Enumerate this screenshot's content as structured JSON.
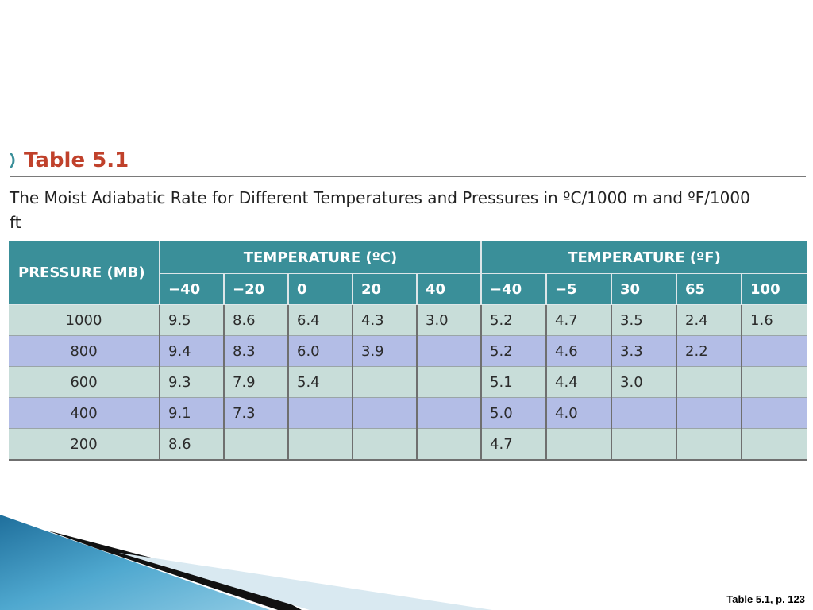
{
  "heading": {
    "label": "Table 5.1",
    "accent_color": "#c0412b",
    "chevron_color": "#3a8f99",
    "icon": "chevron-right-icon"
  },
  "caption": "The Moist Adiabatic Rate for Different Temperatures and Pressures in ºC/1000 m and ºF/1000 ft",
  "table": {
    "header_color": "#3a8f99",
    "row_colors": [
      "#c8ddd9",
      "#b3bde6"
    ],
    "pressure_header": "PRESSURE (MB)",
    "celsius_header": "TEMPERATURE (ºC)",
    "fahrenheit_header": "TEMPERATURE (ºF)",
    "celsius_temps": [
      "−40",
      "−20",
      "0",
      "20",
      "40"
    ],
    "fahrenheit_temps": [
      "−40",
      "−5",
      "30",
      "65",
      "100"
    ],
    "rows": [
      {
        "pressure": "1000",
        "c": [
          "9.5",
          "8.6",
          "6.4",
          "4.3",
          "3.0"
        ],
        "f": [
          "5.2",
          "4.7",
          "3.5",
          "2.4",
          "1.6"
        ]
      },
      {
        "pressure": "800",
        "c": [
          "9.4",
          "8.3",
          "6.0",
          "3.9",
          ""
        ],
        "f": [
          "5.2",
          "4.6",
          "3.3",
          "2.2",
          ""
        ]
      },
      {
        "pressure": "600",
        "c": [
          "9.3",
          "7.9",
          "5.4",
          "",
          ""
        ],
        "f": [
          "5.1",
          "4.4",
          "3.0",
          "",
          ""
        ]
      },
      {
        "pressure": "400",
        "c": [
          "9.1",
          "7.3",
          "",
          "",
          ""
        ],
        "f": [
          "5.0",
          "4.0",
          "",
          "",
          ""
        ]
      },
      {
        "pressure": "200",
        "c": [
          "8.6",
          "",
          "",
          "",
          ""
        ],
        "f": [
          "4.7",
          "",
          "",
          "",
          ""
        ]
      }
    ]
  },
  "footer": {
    "reference": "Table 5.1, p. 123"
  }
}
